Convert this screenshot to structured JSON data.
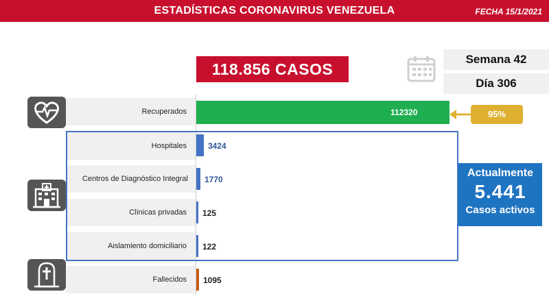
{
  "header": {
    "title": "ESTADÍSTICAS CORONAVIRUS VENEZUELA",
    "date": "FECHA 15/1/2021"
  },
  "total_cases_label": "118.856 CASOS",
  "week_label": "Semana 42",
  "day_label": "Día 306",
  "recovered_percent": "95%",
  "active_box": {
    "line1": "Actualmente",
    "value": "5.441",
    "line2": "Casos activos"
  },
  "colors": {
    "header_red": "#c8102e",
    "recovered_green": "#1fae50",
    "hospital_blue": "#4472c4",
    "deaths_orange": "#c55a11",
    "active_blue": "#1f74c1",
    "percent_gold": "#e0b030"
  },
  "icons": [
    "calendar-icon",
    "heart-pulse-icon",
    "hospital-building-icon",
    "tombstone-icon"
  ],
  "chart_data": {
    "type": "bar",
    "orientation": "horizontal",
    "categories": [
      "Recuperados",
      "Hospitales",
      "Centros de Diagnóstico Integral",
      "Clínicas privadas",
      "Aislamiento domiciliario",
      "Fallecidos"
    ],
    "values": [
      112320,
      3424,
      1770,
      125,
      122,
      1095
    ],
    "value_labels": [
      "112320",
      "3424",
      "1770",
      "125",
      "122",
      "1095"
    ],
    "bar_colors": [
      "#1fae50",
      "#4472c4",
      "#4472c4",
      "#4472c4",
      "#4472c4",
      "#c55a11"
    ],
    "xlim": [
      0,
      112320
    ]
  }
}
